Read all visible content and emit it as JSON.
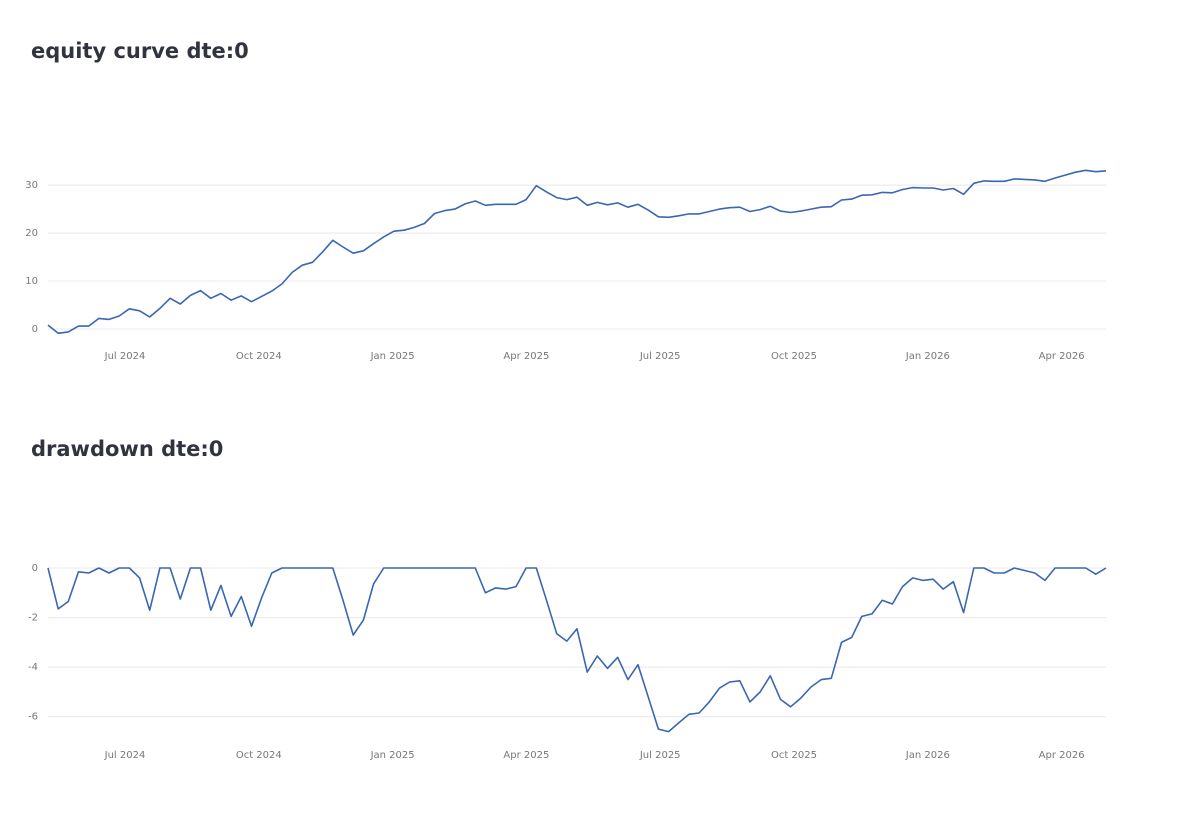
{
  "chart_data": [
    {
      "type": "line",
      "title": "equity curve dte:0",
      "color": "#3a67b1",
      "grid": true,
      "ylim": [
        -2.3,
        34.5
      ],
      "yticks": [
        0,
        10,
        20,
        30
      ],
      "xticks": [
        {
          "value": "2024-07",
          "label": "Jul 2024"
        },
        {
          "value": "2024-10",
          "label": "Oct 2024"
        },
        {
          "value": "2025-01",
          "label": "Jan 2025"
        },
        {
          "value": "2025-04",
          "label": "Apr 2025"
        },
        {
          "value": "2025-07",
          "label": "Jul 2025"
        },
        {
          "value": "2025-10",
          "label": "Oct 2025"
        },
        {
          "value": "2026-01",
          "label": "Jan 2026"
        },
        {
          "value": "2026-04",
          "label": "Apr 2026"
        }
      ],
      "values": [
        0.8,
        -0.9,
        -0.6,
        0.6,
        0.6,
        2.2,
        2.0,
        2.7,
        4.2,
        3.8,
        2.5,
        4.3,
        6.4,
        5.2,
        7.0,
        8.0,
        6.4,
        7.4,
        6.0,
        6.9,
        5.7,
        6.8,
        7.9,
        9.4,
        11.8,
        13.3,
        13.9,
        16.1,
        18.5,
        17.1,
        15.8,
        16.3,
        17.8,
        19.2,
        20.4,
        20.6,
        21.2,
        22.0,
        24.1,
        24.7,
        25.0,
        26.1,
        26.7,
        25.8,
        26.0,
        26.0,
        26.0,
        27.0,
        29.9,
        28.6,
        27.4,
        27.0,
        27.5,
        25.8,
        26.4,
        25.9,
        26.3,
        25.4,
        26.0,
        24.8,
        23.4,
        23.3,
        23.6,
        24.0,
        24.0,
        24.5,
        25.0,
        25.3,
        25.4,
        24.5,
        24.9,
        25.6,
        24.6,
        24.3,
        24.6,
        25.0,
        25.4,
        25.5,
        26.9,
        27.1,
        27.9,
        28.0,
        28.5,
        28.4,
        29.1,
        29.5,
        29.4,
        29.4,
        29.0,
        29.3,
        28.1,
        30.4,
        30.9,
        30.8,
        30.8,
        31.3,
        31.2,
        31.1,
        30.8,
        31.5,
        32.1,
        32.7,
        33.1,
        32.8,
        33.0
      ]
    },
    {
      "type": "line",
      "title": "drawdown dte:0",
      "color": "#3a67b1",
      "grid": true,
      "ylim": [
        -7.1,
        0.3
      ],
      "yticks": [
        -6,
        -4,
        -2,
        0
      ],
      "xticks": [
        {
          "value": "2024-07",
          "label": "Jul 2024"
        },
        {
          "value": "2024-10",
          "label": "Oct 2024"
        },
        {
          "value": "2025-01",
          "label": "Jan 2025"
        },
        {
          "value": "2025-04",
          "label": "Apr 2025"
        },
        {
          "value": "2025-07",
          "label": "Jul 2025"
        },
        {
          "value": "2025-10",
          "label": "Oct 2025"
        },
        {
          "value": "2026-01",
          "label": "Jan 2026"
        },
        {
          "value": "2026-04",
          "label": "Apr 2026"
        }
      ],
      "values": [
        0,
        -1.65,
        -1.35,
        -0.15,
        -0.2,
        0,
        -0.2,
        0,
        0,
        -0.4,
        -1.7,
        0,
        0,
        -1.25,
        0,
        0,
        -1.7,
        -0.7,
        -1.95,
        -1.15,
        -2.35,
        -1.2,
        -0.2,
        0,
        0,
        0,
        0,
        0,
        0,
        -1.3,
        -2.7,
        -2.1,
        -0.65,
        0,
        0,
        0,
        0,
        0,
        0,
        0,
        0,
        0,
        0,
        -1.0,
        -0.8,
        -0.85,
        -0.75,
        0,
        0,
        -1.3,
        -2.65,
        -2.95,
        -2.45,
        -4.2,
        -3.55,
        -4.05,
        -3.6,
        -4.5,
        -3.9,
        -5.2,
        -6.5,
        -6.6,
        -6.25,
        -5.9,
        -5.85,
        -5.4,
        -4.85,
        -4.6,
        -4.55,
        -5.4,
        -5.0,
        -4.35,
        -5.3,
        -5.6,
        -5.25,
        -4.8,
        -4.5,
        -4.45,
        -3.0,
        -2.8,
        -1.95,
        -1.85,
        -1.3,
        -1.45,
        -0.75,
        -0.4,
        -0.5,
        -0.45,
        -0.85,
        -0.55,
        -1.8,
        0,
        0,
        -0.2,
        -0.2,
        0,
        -0.1,
        -0.2,
        -0.5,
        0,
        0,
        0,
        0,
        -0.25,
        0
      ]
    }
  ]
}
